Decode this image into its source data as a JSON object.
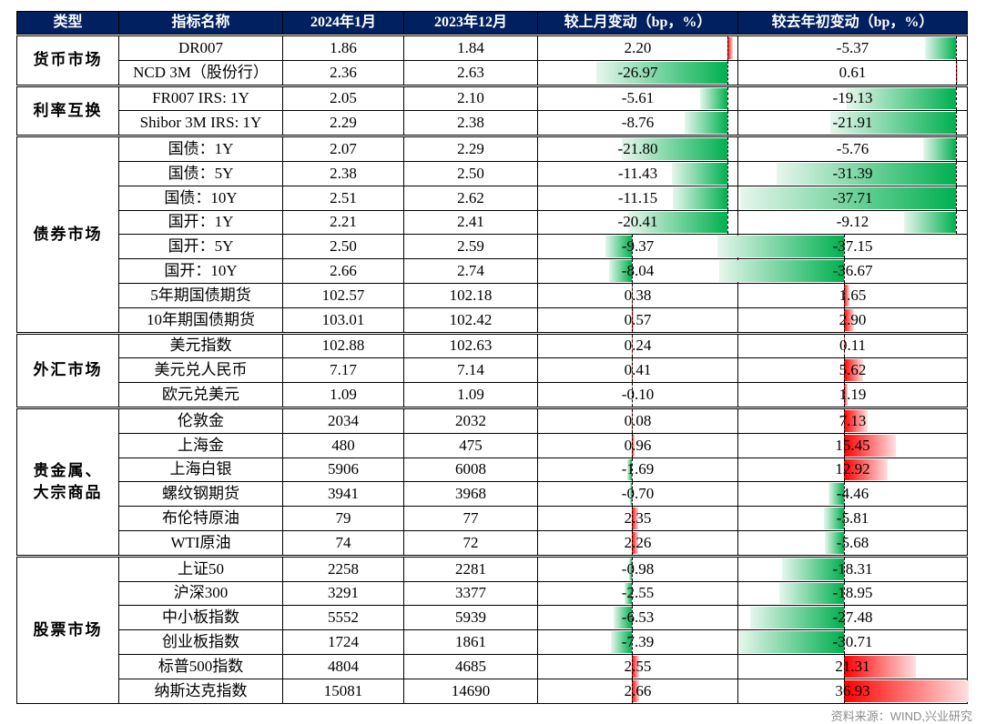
{
  "headers": [
    "类型",
    "指标名称",
    "2024年1月",
    "2023年12月",
    "较上月变动（bp，%）",
    "较去年初变动（bp，%）"
  ],
  "groups": [
    {
      "category": "货币市场",
      "rows": [
        {
          "name": "DR007",
          "jan": "1.86",
          "dec": "1.84",
          "mom": 2.2,
          "ytd": -5.37
        },
        {
          "name": "NCD 3M（股份行）",
          "jan": "2.36",
          "dec": "2.63",
          "mom": -26.97,
          "ytd": 0.61
        }
      ]
    },
    {
      "category": "利率互换",
      "rows": [
        {
          "name": "FR007 IRS: 1Y",
          "jan": "2.05",
          "dec": "2.10",
          "mom": -5.61,
          "ytd": -19.13
        },
        {
          "name": "Shibor 3M IRS: 1Y",
          "jan": "2.29",
          "dec": "2.38",
          "mom": -8.76,
          "ytd": -21.91
        }
      ]
    },
    {
      "category": "债券市场",
      "rows": [
        {
          "name": "国债：1Y",
          "jan": "2.07",
          "dec": "2.29",
          "mom": -21.8,
          "ytd": -5.76
        },
        {
          "name": "国债：5Y",
          "jan": "2.38",
          "dec": "2.50",
          "mom": -11.43,
          "ytd": -31.39
        },
        {
          "name": "国债：10Y",
          "jan": "2.51",
          "dec": "2.62",
          "mom": -11.15,
          "ytd": -37.71
        },
        {
          "name": "国开：1Y",
          "jan": "2.21",
          "dec": "2.41",
          "mom": -20.41,
          "ytd": -9.12
        },
        {
          "name": "国开：5Y",
          "jan": "2.50",
          "dec": "2.59",
          "mom": -9.37,
          "ytd": -37.15
        },
        {
          "name": "国开：10Y",
          "jan": "2.66",
          "dec": "2.74",
          "mom": -8.04,
          "ytd": -36.67
        },
        {
          "name": "5年期国债期货",
          "jan": "102.57",
          "dec": "102.18",
          "mom": 0.38,
          "ytd": 1.65
        },
        {
          "name": "10年期国债期货",
          "jan": "103.01",
          "dec": "102.42",
          "mom": 0.57,
          "ytd": 2.9
        }
      ]
    },
    {
      "category": "外汇市场",
      "rows": [
        {
          "name": "美元指数",
          "jan": "102.88",
          "dec": "102.63",
          "mom": 0.24,
          "ytd": 0.11
        },
        {
          "name": "美元兑人民币",
          "jan": "7.17",
          "dec": "7.14",
          "mom": 0.41,
          "ytd": 5.62
        },
        {
          "name": "欧元兑美元",
          "jan": "1.09",
          "dec": "1.09",
          "mom": -0.1,
          "ytd": 1.19
        }
      ]
    },
    {
      "category": "贵金属、大宗商品",
      "rows": [
        {
          "name": "伦敦金",
          "jan": "2034",
          "dec": "2032",
          "mom": 0.08,
          "ytd": 7.13
        },
        {
          "name": "上海金",
          "jan": "480",
          "dec": "475",
          "mom": 0.96,
          "ytd": 15.45
        },
        {
          "name": "上海白银",
          "jan": "5906",
          "dec": "6008",
          "mom": -1.69,
          "ytd": 12.92
        },
        {
          "name": "螺纹钢期货",
          "jan": "3941",
          "dec": "3968",
          "mom": -0.7,
          "ytd": -4.46
        },
        {
          "name": "布伦特原油",
          "jan": "79",
          "dec": "77",
          "mom": 2.35,
          "ytd": -5.81
        },
        {
          "name": "WTI原油",
          "jan": "74",
          "dec": "72",
          "mom": 2.26,
          "ytd": -5.68
        }
      ]
    },
    {
      "category": "股票市场",
      "rows": [
        {
          "name": "上证50",
          "jan": "2258",
          "dec": "2281",
          "mom": -0.98,
          "ytd": -18.31
        },
        {
          "name": "沪深300",
          "jan": "3291",
          "dec": "3377",
          "mom": -2.55,
          "ytd": -18.95
        },
        {
          "name": "中小板指数",
          "jan": "5552",
          "dec": "5939",
          "mom": -6.53,
          "ytd": -27.48
        },
        {
          "name": "创业板指数",
          "jan": "1724",
          "dec": "1861",
          "mom": -7.39,
          "ytd": -30.71
        },
        {
          "name": "标普500指数",
          "jan": "4804",
          "dec": "4685",
          "mom": 2.55,
          "ytd": 21.31
        },
        {
          "name": "纳斯达克指数",
          "jan": "15081",
          "dec": "14690",
          "mom": 2.66,
          "ytd": 36.93
        }
      ]
    }
  ],
  "colors": {
    "header_bg": "#002060",
    "negative_bar": "#00b050",
    "positive_bar": "#ff0000"
  },
  "source": "资料来源：WIND,兴业研究"
}
